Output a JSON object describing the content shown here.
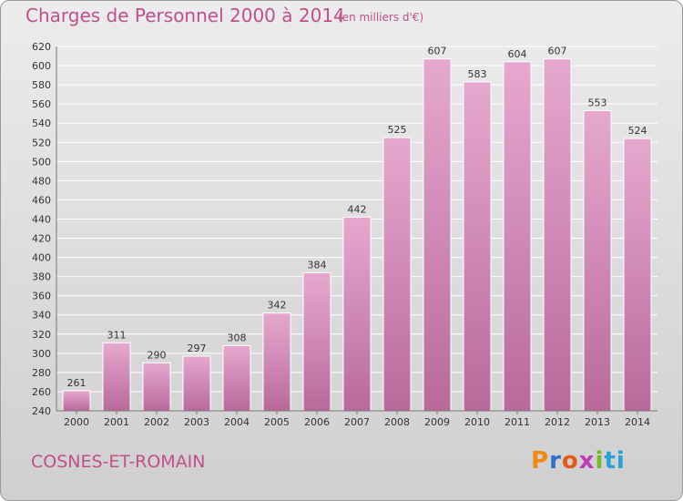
{
  "title": "Charges de Personnel 2000 à 2014",
  "subtitle": "(en milliers d'€)",
  "commune": "COSNES-ET-ROMAIN",
  "logo": {
    "letters": [
      "P",
      "r",
      "o",
      "x",
      "i",
      "ti"
    ]
  },
  "colors": {
    "accent": "#c0508a",
    "bar_top": "#e6a8cf",
    "bar_bottom": "#b86a9a",
    "grid": "#ffffff"
  },
  "chart_data": {
    "type": "bar",
    "categories": [
      "2000",
      "2001",
      "2002",
      "2003",
      "2004",
      "2005",
      "2006",
      "2007",
      "2008",
      "2009",
      "2010",
      "2011",
      "2012",
      "2013",
      "2014"
    ],
    "values": [
      261,
      311,
      290,
      297,
      308,
      342,
      384,
      442,
      525,
      607,
      583,
      604,
      607,
      553,
      524
    ],
    "ylim": [
      240,
      620
    ],
    "yticks": [
      240,
      260,
      280,
      300,
      320,
      340,
      360,
      380,
      400,
      420,
      440,
      460,
      480,
      500,
      520,
      540,
      560,
      580,
      600,
      620
    ],
    "grid": true
  }
}
